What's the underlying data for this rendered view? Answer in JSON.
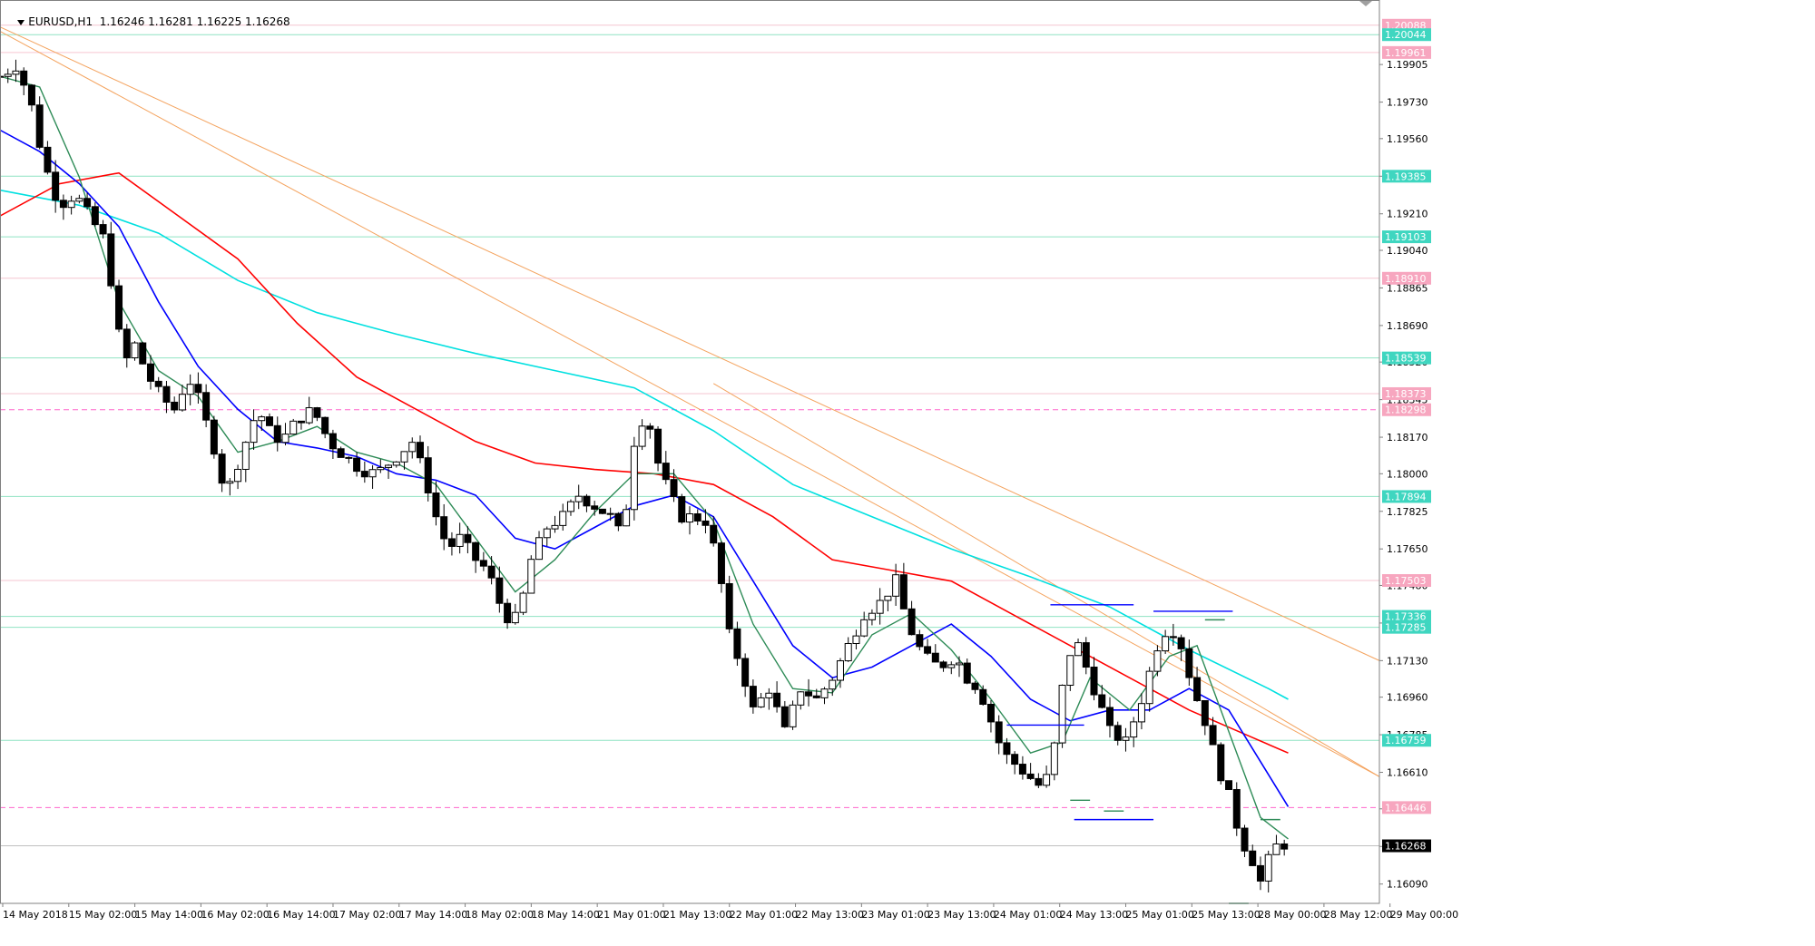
{
  "header": {
    "symbol": "EURUSD,H1",
    "ohlc": "1.16246 1.16281 1.16225 1.16268"
  },
  "colors": {
    "axis": "#808080",
    "hline": "#8fe3c3",
    "hline_dashed": "#ff66cc",
    "ma_fast": "#2e8b57",
    "ma_mid": "#0000ff",
    "ma_slow": "#ff0000",
    "ma_long": "#00e0e0",
    "trendline": "#f4a460",
    "candle_up": "#ffffff",
    "candle_down": "#000000"
  },
  "chart_data": {
    "type": "candlestick",
    "y_range": [
      1.16,
      1.2018
    ],
    "y_ticks": [
      "1.19905",
      "1.19730",
      "1.19560",
      "1.19385",
      "1.19210",
      "1.19040",
      "1.18865",
      "1.18690",
      "1.18520",
      "1.18345",
      "1.18170",
      "1.18000",
      "1.17825",
      "1.17650",
      "1.17480",
      "1.17305",
      "1.17130",
      "1.16960",
      "1.16785",
      "1.16610",
      "1.16440",
      "1.16265",
      "1.16090"
    ],
    "x_labels": [
      "14 May 2018",
      "15 May 02:00",
      "15 May 14:00",
      "16 May 02:00",
      "16 May 14:00",
      "17 May 02:00",
      "17 May 14:00",
      "18 May 02:00",
      "18 May 14:00",
      "21 May 01:00",
      "21 May 13:00",
      "22 May 01:00",
      "22 May 13:00",
      "23 May 01:00",
      "23 May 13:00",
      "24 May 01:00",
      "24 May 13:00",
      "25 May 01:00",
      "25 May 13:00",
      "28 May 00:00",
      "28 May 12:00",
      "29 May 00:00"
    ],
    "price_levels": [
      {
        "value": 1.20088,
        "label": "1.20088",
        "style": "pink"
      },
      {
        "value": 1.20044,
        "label": "1.20044",
        "style": "teal"
      },
      {
        "value": 1.19961,
        "label": "1.19961",
        "style": "pink"
      },
      {
        "value": 1.19385,
        "label": "1.19385",
        "style": "teal"
      },
      {
        "value": 1.19103,
        "label": "1.19103",
        "style": "teal"
      },
      {
        "value": 1.1891,
        "label": "1.18910",
        "style": "pink"
      },
      {
        "value": 1.18539,
        "label": "1.18539",
        "style": "teal"
      },
      {
        "value": 1.18373,
        "label": "1.18373",
        "style": "pink"
      },
      {
        "value": 1.18298,
        "label": "1.18298",
        "style": "pinkdash"
      },
      {
        "value": 1.17894,
        "label": "1.17894",
        "style": "teal"
      },
      {
        "value": 1.17503,
        "label": "1.17503",
        "style": "pink"
      },
      {
        "value": 1.17336,
        "label": "1.17336",
        "style": "teal"
      },
      {
        "value": 1.17285,
        "label": "1.17285",
        "style": "teal"
      },
      {
        "value": 1.16759,
        "label": "1.16759",
        "style": "teal"
      },
      {
        "value": 1.16446,
        "label": "1.16446",
        "style": "pinkdash"
      },
      {
        "value": 1.16268,
        "label": "1.16268",
        "style": "current"
      }
    ],
    "close_path": [
      [
        0,
        1.1985
      ],
      [
        8,
        1.199
      ],
      [
        15,
        1.1975
      ],
      [
        22,
        1.1945
      ],
      [
        30,
        1.1925
      ],
      [
        38,
        1.193
      ],
      [
        45,
        1.192
      ],
      [
        52,
        1.191
      ],
      [
        58,
        1.188
      ],
      [
        62,
        1.185
      ],
      [
        68,
        1.186
      ],
      [
        75,
        1.1845
      ],
      [
        82,
        1.1835
      ],
      [
        88,
        1.183
      ],
      [
        95,
        1.1845
      ],
      [
        100,
        1.1835
      ],
      [
        108,
        1.1812
      ],
      [
        114,
        1.179
      ],
      [
        118,
        1.18
      ],
      [
        124,
        1.1815
      ],
      [
        130,
        1.183
      ],
      [
        136,
        1.182
      ],
      [
        142,
        1.1815
      ],
      [
        150,
        1.1825
      ],
      [
        158,
        1.183
      ],
      [
        166,
        1.1815
      ],
      [
        174,
        1.1808
      ],
      [
        182,
        1.1802
      ],
      [
        190,
        1.18
      ],
      [
        200,
        1.1808
      ],
      [
        208,
        1.1815
      ],
      [
        214,
        1.18
      ],
      [
        220,
        1.178
      ],
      [
        226,
        1.1765
      ],
      [
        232,
        1.177
      ],
      [
        240,
        1.176
      ],
      [
        246,
        1.1755
      ],
      [
        252,
        1.174
      ],
      [
        258,
        1.173
      ],
      [
        262,
        1.1735
      ],
      [
        268,
        1.176
      ],
      [
        276,
        1.1775
      ],
      [
        284,
        1.178
      ],
      [
        292,
        1.179
      ],
      [
        300,
        1.1785
      ],
      [
        308,
        1.178
      ],
      [
        314,
        1.177
      ],
      [
        320,
        1.1815
      ],
      [
        326,
        1.183
      ],
      [
        332,
        1.1805
      ],
      [
        338,
        1.179
      ],
      [
        344,
        1.178
      ],
      [
        350,
        1.178
      ],
      [
        356,
        1.1778
      ],
      [
        362,
        1.176
      ],
      [
        368,
        1.1725
      ],
      [
        374,
        1.171
      ],
      [
        380,
        1.169
      ],
      [
        388,
        1.17
      ],
      [
        396,
        1.168
      ],
      [
        404,
        1.17
      ],
      [
        412,
        1.1695
      ],
      [
        420,
        1.1705
      ],
      [
        428,
        1.172
      ],
      [
        436,
        1.1735
      ],
      [
        444,
        1.174
      ],
      [
        452,
        1.175
      ],
      [
        458,
        1.173
      ],
      [
        466,
        1.1715
      ],
      [
        474,
        1.171
      ],
      [
        482,
        1.1715
      ],
      [
        488,
        1.1705
      ],
      [
        494,
        1.17
      ],
      [
        500,
        1.1685
      ],
      [
        506,
        1.167
      ],
      [
        512,
        1.1665
      ],
      [
        518,
        1.166
      ],
      [
        524,
        1.1655
      ],
      [
        530,
        1.166
      ],
      [
        536,
        1.17
      ],
      [
        542,
        1.1725
      ],
      [
        548,
        1.171
      ],
      [
        554,
        1.1695
      ],
      [
        560,
        1.168
      ],
      [
        568,
        1.1675
      ],
      [
        576,
        1.1695
      ],
      [
        584,
        1.172
      ],
      [
        590,
        1.173
      ],
      [
        596,
        1.172
      ],
      [
        602,
        1.17
      ],
      [
        608,
        1.1685
      ],
      [
        614,
        1.1665
      ],
      [
        620,
        1.165
      ],
      [
        626,
        1.163
      ],
      [
        632,
        1.162
      ],
      [
        636,
        1.161
      ],
      [
        640,
        1.162
      ],
      [
        646,
        1.163
      ],
      [
        650,
        1.1625
      ]
    ],
    "ma_fast": [
      [
        0,
        1.1985
      ],
      [
        20,
        1.198
      ],
      [
        40,
        1.1938
      ],
      [
        60,
        1.188
      ],
      [
        80,
        1.1848
      ],
      [
        100,
        1.1836
      ],
      [
        120,
        1.181
      ],
      [
        140,
        1.1815
      ],
      [
        160,
        1.1822
      ],
      [
        180,
        1.181
      ],
      [
        200,
        1.1805
      ],
      [
        220,
        1.1795
      ],
      [
        240,
        1.177
      ],
      [
        260,
        1.1745
      ],
      [
        280,
        1.176
      ],
      [
        300,
        1.1782
      ],
      [
        320,
        1.18
      ],
      [
        340,
        1.18
      ],
      [
        360,
        1.1778
      ],
      [
        380,
        1.173
      ],
      [
        400,
        1.17
      ],
      [
        420,
        1.1698
      ],
      [
        440,
        1.1725
      ],
      [
        460,
        1.1735
      ],
      [
        480,
        1.1718
      ],
      [
        500,
        1.1695
      ],
      [
        520,
        1.167
      ],
      [
        536,
        1.1675
      ],
      [
        550,
        1.1705
      ],
      [
        570,
        1.169
      ],
      [
        590,
        1.1715
      ],
      [
        604,
        1.172
      ],
      [
        620,
        1.168
      ],
      [
        636,
        1.164
      ],
      [
        650,
        1.163
      ]
    ],
    "ma_mid": [
      [
        0,
        1.196
      ],
      [
        20,
        1.195
      ],
      [
        40,
        1.1935
      ],
      [
        60,
        1.1915
      ],
      [
        80,
        1.188
      ],
      [
        100,
        1.185
      ],
      [
        120,
        1.183
      ],
      [
        140,
        1.1815
      ],
      [
        160,
        1.1812
      ],
      [
        180,
        1.1808
      ],
      [
        200,
        1.18
      ],
      [
        220,
        1.1797
      ],
      [
        240,
        1.179
      ],
      [
        260,
        1.177
      ],
      [
        280,
        1.1765
      ],
      [
        300,
        1.1775
      ],
      [
        320,
        1.1785
      ],
      [
        340,
        1.179
      ],
      [
        360,
        1.178
      ],
      [
        380,
        1.175
      ],
      [
        400,
        1.172
      ],
      [
        420,
        1.1705
      ],
      [
        440,
        1.171
      ],
      [
        460,
        1.172
      ],
      [
        480,
        1.173
      ],
      [
        500,
        1.1715
      ],
      [
        520,
        1.1695
      ],
      [
        540,
        1.1685
      ],
      [
        560,
        1.169
      ],
      [
        580,
        1.169
      ],
      [
        600,
        1.17
      ],
      [
        620,
        1.169
      ],
      [
        640,
        1.166
      ],
      [
        650,
        1.1645
      ]
    ],
    "ma_slow": [
      [
        0,
        1.192
      ],
      [
        30,
        1.1935
      ],
      [
        60,
        1.194
      ],
      [
        90,
        1.192
      ],
      [
        120,
        1.19
      ],
      [
        150,
        1.187
      ],
      [
        180,
        1.1845
      ],
      [
        210,
        1.183
      ],
      [
        240,
        1.1815
      ],
      [
        270,
        1.1805
      ],
      [
        300,
        1.1802
      ],
      [
        330,
        1.18
      ],
      [
        360,
        1.1795
      ],
      [
        390,
        1.178
      ],
      [
        420,
        1.176
      ],
      [
        450,
        1.1755
      ],
      [
        480,
        1.175
      ],
      [
        510,
        1.1735
      ],
      [
        540,
        1.172
      ],
      [
        570,
        1.1705
      ],
      [
        600,
        1.169
      ],
      [
        630,
        1.1678
      ],
      [
        650,
        1.167
      ]
    ],
    "ma_long": [
      [
        0,
        1.1932
      ],
      [
        40,
        1.1925
      ],
      [
        80,
        1.1912
      ],
      [
        120,
        1.189
      ],
      [
        160,
        1.1875
      ],
      [
        200,
        1.1865
      ],
      [
        240,
        1.1856
      ],
      [
        280,
        1.1848
      ],
      [
        320,
        1.184
      ],
      [
        360,
        1.182
      ],
      [
        400,
        1.1795
      ],
      [
        440,
        1.178
      ],
      [
        480,
        1.1765
      ],
      [
        520,
        1.1752
      ],
      [
        560,
        1.1738
      ],
      [
        600,
        1.1718
      ],
      [
        640,
        1.17
      ],
      [
        650,
        1.1695
      ]
    ],
    "trend_lines": [
      {
        "from": [
          0,
          1.2008
        ],
        "to": [
          696,
          1.1713
        ]
      },
      {
        "from": [
          0,
          1.2006
        ],
        "to": [
          696,
          1.1659
        ]
      },
      {
        "from": [
          360,
          1.1842
        ],
        "to": [
          696,
          1.1659
        ]
      }
    ],
    "level_segments": [
      {
        "from": [
          530,
          1.1739
        ],
        "to": [
          572,
          1.1739
        ],
        "color": "blue"
      },
      {
        "from": [
          582,
          1.1736
        ],
        "to": [
          622,
          1.1736
        ],
        "color": "blue"
      },
      {
        "from": [
          508,
          1.1683
        ],
        "to": [
          547,
          1.1683
        ],
        "color": "blue"
      },
      {
        "from": [
          542,
          1.1639
        ],
        "to": [
          582,
          1.1639
        ],
        "color": "blue"
      },
      {
        "from": [
          540,
          1.1648
        ],
        "to": [
          550,
          1.1648
        ],
        "color": "green"
      },
      {
        "from": [
          557,
          1.1643
        ],
        "to": [
          567,
          1.1643
        ],
        "color": "green"
      },
      {
        "from": [
          608,
          1.1732
        ],
        "to": [
          618,
          1.1732
        ],
        "color": "green"
      },
      {
        "from": [
          636,
          1.1639
        ],
        "to": [
          646,
          1.1639
        ],
        "color": "green"
      },
      {
        "from": [
          620,
          1.16
        ],
        "to": [
          630,
          1.16
        ],
        "color": "green"
      }
    ],
    "x_max": 696
  }
}
